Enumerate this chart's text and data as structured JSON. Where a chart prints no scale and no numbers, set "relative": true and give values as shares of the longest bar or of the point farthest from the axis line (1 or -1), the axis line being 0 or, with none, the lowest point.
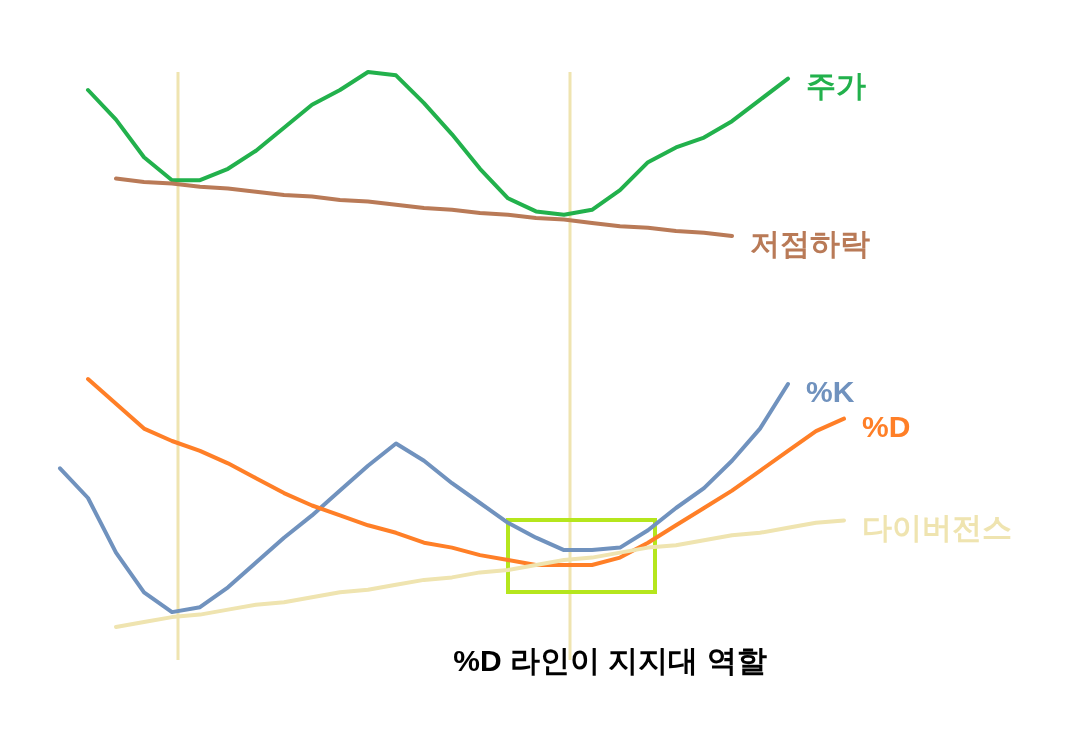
{
  "chart_data": [
    {
      "type": "line",
      "relative": true,
      "categories": [
        null,
        null,
        null,
        null,
        null,
        null,
        null,
        null,
        null,
        null,
        null,
        null,
        null,
        null,
        null,
        null,
        null,
        null,
        null,
        null,
        null,
        null,
        null,
        null,
        null,
        null,
        null,
        null,
        null
      ],
      "series": [
        {
          "name": "주가",
          "color": "#22b14c",
          "values": [
            null,
            0.89,
            0.71,
            0.48,
            0.34,
            0.34,
            0.41,
            0.52,
            0.66,
            0.8,
            0.89,
            1.0,
            0.98,
            0.81,
            0.62,
            0.41,
            0.23,
            0.15,
            0.13,
            0.16,
            0.28,
            0.45,
            0.54,
            0.6,
            0.7,
            0.83,
            0.96,
            null,
            null
          ]
        },
        {
          "name": "저점하락",
          "color": "#b97a57",
          "values": [
            null,
            null,
            0.35,
            0.33,
            0.32,
            0.3,
            0.29,
            0.27,
            0.25,
            0.24,
            0.22,
            0.21,
            0.19,
            0.17,
            0.16,
            0.14,
            0.13,
            0.11,
            0.1,
            0.08,
            0.06,
            0.05,
            0.03,
            0.02,
            0.0,
            null,
            null,
            null,
            null
          ]
        }
      ]
    },
    {
      "type": "line",
      "relative": true,
      "categories": [
        null,
        null,
        null,
        null,
        null,
        null,
        null,
        null,
        null,
        null,
        null,
        null,
        null,
        null,
        null,
        null,
        null,
        null,
        null,
        null,
        null,
        null,
        null,
        null,
        null,
        null,
        null,
        null,
        null
      ],
      "series": [
        {
          "name": "%K",
          "color": "#7092be",
          "values": [
            0.64,
            0.52,
            0.3,
            0.14,
            0.06,
            0.08,
            0.16,
            0.26,
            0.36,
            0.45,
            0.55,
            0.65,
            0.74,
            0.67,
            0.58,
            0.5,
            0.42,
            0.36,
            0.31,
            0.31,
            0.32,
            0.39,
            0.48,
            0.56,
            0.67,
            0.8,
            0.98,
            null,
            null
          ]
        },
        {
          "name": "%D",
          "color": "#ff7f27",
          "values": [
            null,
            1.0,
            0.9,
            0.8,
            0.75,
            0.71,
            0.66,
            0.6,
            0.54,
            0.49,
            0.45,
            0.41,
            0.38,
            0.34,
            0.32,
            0.29,
            0.27,
            0.25,
            0.25,
            0.25,
            0.28,
            0.34,
            0.41,
            0.48,
            0.55,
            0.63,
            0.71,
            0.79,
            0.84
          ]
        },
        {
          "name": "다이버전스",
          "color": "#efe4b0",
          "values": [
            null,
            null,
            0.0,
            0.02,
            0.04,
            0.05,
            0.07,
            0.09,
            0.1,
            0.12,
            0.14,
            0.15,
            0.17,
            0.19,
            0.2,
            0.22,
            0.23,
            0.25,
            0.27,
            0.28,
            0.3,
            0.32,
            0.33,
            0.35,
            0.37,
            0.38,
            0.4,
            0.42,
            0.43
          ]
        }
      ],
      "annotations": [
        "%D 라인이 지지대 역할"
      ]
    }
  ]
}
